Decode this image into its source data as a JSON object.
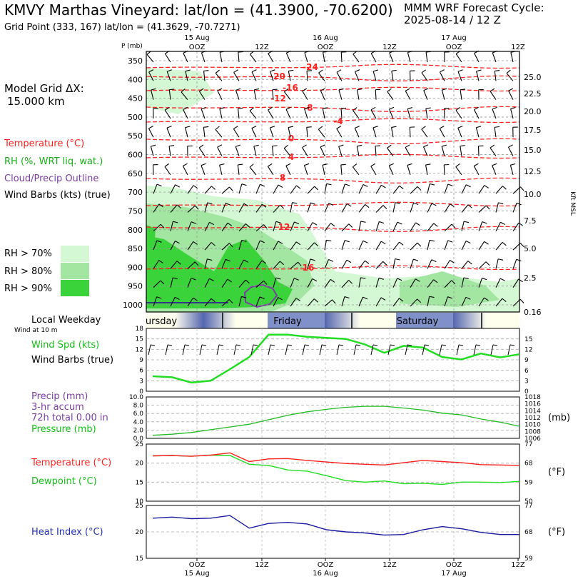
{
  "header": {
    "title": "KMVY Marthas Vineyard:  lat/lon = (41.3900, -70.6200)",
    "subtitle": "Grid Point (333, 167) lat/lon = (41.3629, -70.7271)",
    "cycle_line1": "MMM WRF Forecast Cycle:",
    "cycle_line2": "2025-08-14 / 12  Z"
  },
  "legend": {
    "grid_dx_line1": "Model Grid ΔX:",
    "grid_dx_line2": "15.000 km",
    "temperature": "Temperature (°C)",
    "rh": "RH (%, WRT liq. wat.)",
    "cloud": "Cloud/Precip Outline",
    "wind": "Wind Barbs (kts) (true)",
    "rh70": "RH > 70%",
    "rh80": "RH > 80%",
    "rh90": "RH > 90%",
    "colors": {
      "rh70": "#d4f7d4",
      "rh80": "#a2e6a2",
      "rh90": "#3ad33a",
      "temp": "#ff2020",
      "wind_spd": "#22dd22",
      "pressure": "#22bb22",
      "dewpoint": "#22dd22",
      "heat_index": "#1a1aa0",
      "cloud": "#7a3da0"
    }
  },
  "time_axis": {
    "top_dates": [
      "15 Aug",
      "16 Aug",
      "17 Aug"
    ],
    "top_hours": [
      "OOZ",
      "12Z",
      "OOZ",
      "12Z",
      "OOZ",
      "12Z"
    ],
    "bottom_hours": [
      "OOZ",
      "12Z",
      "OOZ",
      "12Z",
      "OOZ",
      "12Z"
    ],
    "bottom_dates": [
      "15 Aug",
      "16 Aug",
      "17 Aug"
    ]
  },
  "local_weekday": {
    "title": "Local Weekday",
    "subtitle": "Wind at 10 m",
    "days": [
      "ursday",
      "Friday",
      "Saturday"
    ]
  },
  "chart_data": [
    {
      "type": "heatmap",
      "name": "time-height cross section",
      "ylabel_left": "P (mb)",
      "ylabel_right": "Kft MSL",
      "pressure_ticks": [
        350,
        400,
        450,
        500,
        550,
        600,
        650,
        700,
        750,
        800,
        850,
        900,
        950,
        1000
      ],
      "height_ticks": [
        "25.0",
        "22.5",
        "20.0",
        "17.5",
        "15.0",
        "12.5",
        "10.0",
        "7.5",
        "5.0",
        "2.5",
        "0.16"
      ],
      "isotherm_labels": [
        "-24",
        "-20",
        "-16",
        "-12",
        "-8",
        "-4",
        "0",
        "4",
        "8",
        "12",
        "16"
      ]
    },
    {
      "type": "line",
      "name": "wind speed",
      "ylabel": "Wind Spd (kts)",
      "ylabel2": "Wind Barbs (true)",
      "ylim": [
        0,
        18
      ],
      "yticks_left": [
        "18",
        "15",
        "12",
        "9",
        "6",
        "3",
        "0"
      ],
      "yticks_right": [
        "15",
        "12",
        "9",
        "6",
        "3",
        "0"
      ],
      "x_hours": [
        0,
        3,
        6,
        9,
        12,
        15,
        18,
        21,
        24,
        27,
        30,
        33,
        36,
        39,
        42,
        45,
        48,
        51,
        54,
        57
      ],
      "values": [
        4.3,
        4.0,
        2.5,
        3.0,
        6.3,
        9.8,
        16.2,
        16.2,
        15.6,
        15.3,
        15.0,
        13.4,
        11.0,
        13.0,
        12.5,
        9.8,
        9.1,
        10.8,
        9.7,
        10.6
      ]
    },
    {
      "type": "line",
      "name": "precipitation and pressure",
      "ylabel_line1": "Precip (mm)",
      "ylabel_line2": "3-hr accum",
      "ylabel_line3": "72h total 0.00 in",
      "ylabel_line4": "Pressure (mb)",
      "yunit_right": "(mb)",
      "yticks_left": [
        "10.0",
        "8.0",
        "6.0",
        "4.0",
        "2.0",
        "0.0"
      ],
      "yticks_right": [
        "1018",
        "1016",
        "1014",
        "1012",
        "1010",
        "1008",
        "1006"
      ],
      "ylim_precip": [
        0,
        10
      ],
      "ylim_pressure": [
        1006,
        1018
      ],
      "x_hours": [
        0,
        3,
        6,
        9,
        12,
        15,
        18,
        21,
        24,
        27,
        30,
        33,
        36,
        39,
        42,
        45,
        48,
        51,
        54,
        57
      ],
      "precip": [
        0,
        0,
        0,
        0,
        0,
        0,
        0,
        0,
        0,
        0,
        0,
        0,
        0,
        0,
        0,
        0,
        0,
        0,
        0,
        0
      ],
      "pressure": [
        1006.9,
        1007.2,
        1007.7,
        1008.5,
        1009.3,
        1010.1,
        1011.4,
        1012.7,
        1013.7,
        1014.4,
        1015.0,
        1015.3,
        1015.3,
        1014.8,
        1014.2,
        1013.3,
        1012.8,
        1011.6,
        1010.7,
        1009.5
      ]
    },
    {
      "type": "line",
      "name": "temperature and dewpoint",
      "series_labels": [
        "Temperature (°C)",
        "Dewpoint (°C)"
      ],
      "yunit_right": "(°F)",
      "ylim": [
        10,
        25
      ],
      "yticks_left": [
        "25",
        "20",
        "15",
        "10"
      ],
      "yticks_right": [
        "77",
        "68",
        "59",
        "50"
      ],
      "x_hours": [
        0,
        3,
        6,
        9,
        12,
        15,
        18,
        21,
        24,
        27,
        30,
        33,
        36,
        39,
        42,
        45,
        48,
        51,
        54,
        57
      ],
      "series": [
        {
          "name": "Temperature (°C)",
          "values": [
            21.9,
            22.0,
            21.8,
            22.1,
            22.7,
            20.4,
            21.1,
            21.2,
            20.7,
            20.3,
            19.9,
            19.7,
            19.5,
            20.1,
            20.7,
            20.4,
            20.1,
            19.6,
            19.5,
            19.4
          ]
        },
        {
          "name": "Dewpoint (°C)",
          "values": [
            21.9,
            22.0,
            21.8,
            22.1,
            22.0,
            19.7,
            19.4,
            18.2,
            17.9,
            16.7,
            15.4,
            15.0,
            15.3,
            14.6,
            14.7,
            14.4,
            15.0,
            15.0,
            14.9,
            15.2
          ]
        }
      ]
    },
    {
      "type": "line",
      "name": "heat index",
      "series_labels": [
        "Heat Index (°C)"
      ],
      "yunit_right": "(°F)",
      "ylim": [
        15,
        25
      ],
      "yticks_left": [
        "25",
        "20",
        "15"
      ],
      "yticks_right": [
        "77",
        "68",
        "59"
      ],
      "x_hours": [
        0,
        3,
        6,
        9,
        12,
        15,
        18,
        21,
        24,
        27,
        30,
        33,
        36,
        39,
        42,
        45,
        48,
        51,
        54,
        57
      ],
      "series": [
        {
          "name": "Heat Index (°C)",
          "values": [
            22.6,
            22.8,
            22.5,
            22.6,
            23.1,
            20.7,
            21.6,
            21.8,
            21.5,
            20.4,
            20.0,
            19.8,
            19.4,
            19.5,
            20.4,
            21.0,
            20.6,
            19.9,
            19.5,
            19.5
          ]
        }
      ]
    }
  ]
}
